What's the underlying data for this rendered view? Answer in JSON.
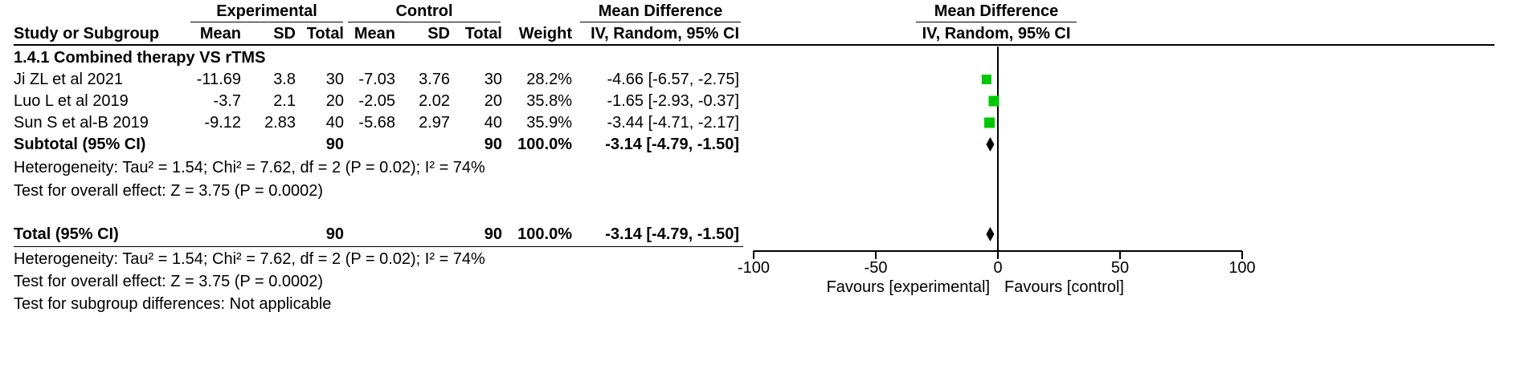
{
  "header": {
    "experimental": "Experimental",
    "control": "Control",
    "md_left": "Mean Difference",
    "md_right": "Mean Difference",
    "col_study": "Study or Subgroup",
    "col_mean": "Mean",
    "col_sd": "SD",
    "col_total": "Total",
    "col_weight": "Weight",
    "col_method_left": "IV, Random, 95% CI",
    "col_method_right": "IV, Random, 95% CI"
  },
  "subgroup": {
    "title": "1.4.1 Combined therapy VS rTMS",
    "subtotal_label": "Subtotal (95% CI)",
    "subtotal_e_total": "90",
    "subtotal_c_total": "90",
    "subtotal_weight": "100.0%",
    "subtotal_ci": "-3.14 [-4.79, -1.50]",
    "heterogeneity": "Heterogeneity: Tau² = 1.54; Chi² = 7.62, df = 2 (P = 0.02); I² = 74%",
    "overall": "Test for overall effect: Z = 3.75 (P = 0.0002)"
  },
  "studies": [
    {
      "name": "Ji ZL et al 2021",
      "e_mean": "-11.69",
      "e_sd": "3.8",
      "e_total": "30",
      "c_mean": "-7.03",
      "c_sd": "3.76",
      "c_total": "30",
      "weight": "28.2%",
      "ci": "-4.66 [-6.57, -2.75]"
    },
    {
      "name": "Luo L et al 2019",
      "e_mean": "-3.7",
      "e_sd": "2.1",
      "e_total": "20",
      "c_mean": "-2.05",
      "c_sd": "2.02",
      "c_total": "20",
      "weight": "35.8%",
      "ci": "-1.65 [-2.93, -0.37]"
    },
    {
      "name": "Sun S et al-B 2019",
      "e_mean": "-9.12",
      "e_sd": "2.83",
      "e_total": "40",
      "c_mean": "-5.68",
      "c_sd": "2.97",
      "c_total": "40",
      "weight": "35.9%",
      "ci": "-3.44 [-4.71, -2.17]"
    }
  ],
  "total": {
    "label": "Total (95% CI)",
    "e_total": "90",
    "c_total": "90",
    "weight": "100.0%",
    "ci": "-3.14 [-4.79, -1.50]",
    "heterogeneity": "Heterogeneity: Tau² = 1.54; Chi² = 7.62, df = 2 (P = 0.02); I² = 74%",
    "overall": "Test for overall effect: Z = 3.75 (P = 0.0002)",
    "subgroup_diff": "Test for subgroup differences: Not applicable"
  },
  "axis": {
    "ticks": [
      "-100",
      "-50",
      "0",
      "50",
      "100"
    ],
    "favours_left": "Favours [experimental]",
    "favours_right": "Favours [control]"
  },
  "chart_data": {
    "type": "scatter",
    "xlim": [
      -100,
      100
    ],
    "xticks": [
      -100,
      -50,
      0,
      50,
      100
    ],
    "marker_color": "#00c800",
    "studies": [
      {
        "name": "Ji ZL et al 2021",
        "md": -4.66,
        "lo": -6.57,
        "hi": -2.75,
        "weight": 28.2
      },
      {
        "name": "Luo L et al 2019",
        "md": -1.65,
        "lo": -2.93,
        "hi": -0.37,
        "weight": 35.8
      },
      {
        "name": "Sun S et al-B 2019",
        "md": -3.44,
        "lo": -4.71,
        "hi": -2.17,
        "weight": 35.9
      }
    ],
    "pooled": [
      {
        "name": "Subtotal (95% CI)",
        "md": -3.14,
        "lo": -4.79,
        "hi": -1.5
      },
      {
        "name": "Total (95% CI)",
        "md": -3.14,
        "lo": -4.79,
        "hi": -1.5
      }
    ]
  }
}
